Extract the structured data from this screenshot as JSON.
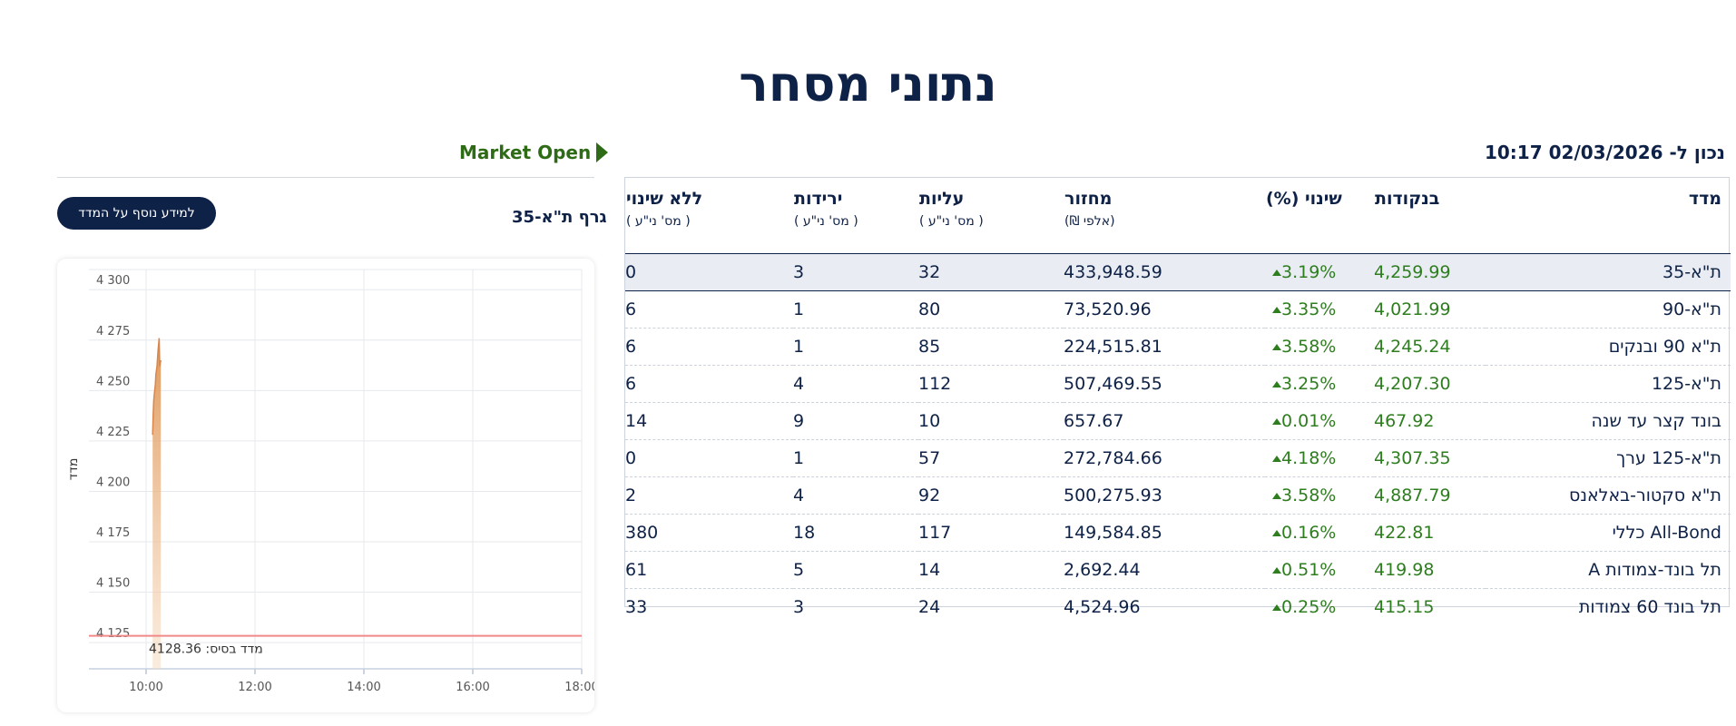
{
  "page": {
    "title": "נתוני מסחר"
  },
  "table": {
    "as_of": "נכון ל- 02/03/2026 10:17",
    "headers": [
      {
        "label": "מדד",
        "sub": ""
      },
      {
        "label": "בנקודות",
        "sub": ""
      },
      {
        "label": "שינוי (%)",
        "sub": ""
      },
      {
        "label": "מחזור",
        "sub": "(אלפי ₪)"
      },
      {
        "label": "עליות",
        "sub": "( מס' ני\"ע )"
      },
      {
        "label": "ירידות",
        "sub": "( מס' ני\"ע )"
      },
      {
        "label": "ללא שינוי",
        "sub": "( מס' ני\"ע )"
      }
    ],
    "rows": [
      {
        "name": "ת\"א-35",
        "points": "4,259.99",
        "change": "3.19%",
        "turnover": "433,948.59",
        "up": "32",
        "down": "3",
        "flat": "0"
      },
      {
        "name": "ת\"א-90",
        "points": "4,021.99",
        "change": "3.35%",
        "turnover": "73,520.96",
        "up": "80",
        "down": "1",
        "flat": "6"
      },
      {
        "name": "ת\"א 90 ובנקים",
        "points": "4,245.24",
        "change": "3.58%",
        "turnover": "224,515.81",
        "up": "85",
        "down": "1",
        "flat": "6"
      },
      {
        "name": "ת\"א-125",
        "points": "4,207.30",
        "change": "3.25%",
        "turnover": "507,469.55",
        "up": "112",
        "down": "4",
        "flat": "6"
      },
      {
        "name": "בונד קצר עד שנה",
        "points": "467.92",
        "change": "0.01%",
        "turnover": "657.67",
        "up": "10",
        "down": "9",
        "flat": "14"
      },
      {
        "name": "ת\"א-125 ערך",
        "points": "4,307.35",
        "change": "4.18%",
        "turnover": "272,784.66",
        "up": "57",
        "down": "1",
        "flat": "0"
      },
      {
        "name": "ת\"א סקטור-באלאנס",
        "points": "4,887.79",
        "change": "3.58%",
        "turnover": "500,275.93",
        "up": "92",
        "down": "4",
        "flat": "2"
      },
      {
        "name": "All-Bond כללי",
        "points": "422.81",
        "change": "0.16%",
        "turnover": "149,584.85",
        "up": "117",
        "down": "18",
        "flat": "380"
      },
      {
        "name": "תל בונד-צמודות A",
        "points": "419.98",
        "change": "0.51%",
        "turnover": "2,692.44",
        "up": "14",
        "down": "5",
        "flat": "61"
      },
      {
        "name": "תל בונד 60 צמודות",
        "points": "415.15",
        "change": "0.25%",
        "turnover": "4,524.96",
        "up": "24",
        "down": "3",
        "flat": "33"
      }
    ],
    "selected_row": 0
  },
  "side": {
    "market_status": "Market Open",
    "chart_title": "גרף ת\"א-35",
    "info_button": "למידע נוסף על המדד"
  },
  "colors": {
    "navy": "#0e2146",
    "green": "#2e7d1f",
    "area": "#e0985a",
    "baseline": "#f08a8a"
  },
  "chart_data": {
    "type": "area",
    "ylabel": "מדד",
    "y_ticks": [
      "4 125",
      "4 150",
      "4 175",
      "4 200",
      "4 225",
      "4 250",
      "4 275",
      "4 300"
    ],
    "y_tick_values": [
      4125,
      4150,
      4175,
      4200,
      4225,
      4250,
      4275,
      4300
    ],
    "ylim": [
      4112,
      4310
    ],
    "x_ticks": [
      "10:00",
      "12:00",
      "14:00",
      "16:00",
      "18:00"
    ],
    "x_tick_values": [
      10,
      12,
      14,
      16,
      18
    ],
    "xlim": [
      8.95,
      18
    ],
    "baseline": {
      "value": 4128.36,
      "label": "מדד בסיס: 4128.36"
    },
    "series": [
      {
        "x": [
          10.12,
          10.13,
          10.14,
          10.15,
          10.17,
          10.18,
          10.2,
          10.22,
          10.24,
          10.25,
          10.27
        ],
        "values": [
          4228,
          4238,
          4245,
          4248,
          4253,
          4258,
          4262,
          4270,
          4276,
          4262,
          4265
        ]
      }
    ]
  }
}
